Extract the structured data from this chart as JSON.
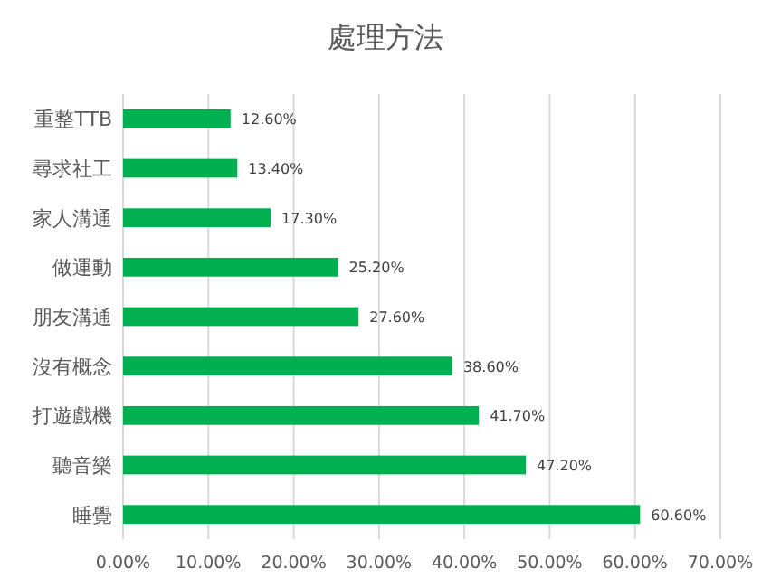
{
  "chart_data": {
    "type": "bar",
    "orientation": "horizontal",
    "title": "處理方法",
    "categories": [
      "重整TTB",
      "尋求社工",
      "家人溝通",
      "做運動",
      "朋友溝通",
      "沒有概念",
      "打遊戲機",
      "聽音樂",
      "睡覺"
    ],
    "values": [
      12.6,
      13.4,
      17.3,
      25.2,
      27.6,
      38.6,
      41.7,
      47.2,
      60.6
    ],
    "value_labels": [
      "12.60%",
      "13.40%",
      "17.30%",
      "25.20%",
      "27.60%",
      "38.60%",
      "41.70%",
      "47.20%",
      "60.60%"
    ],
    "color": "#00b050",
    "xlim": [
      0,
      70
    ],
    "xticks": [
      {
        "value": 0,
        "label": "0.00%"
      },
      {
        "value": 10,
        "label": "10.00%"
      },
      {
        "value": 20,
        "label": "20.00%"
      },
      {
        "value": 30,
        "label": "30.00%"
      },
      {
        "value": 40,
        "label": "40.00%"
      },
      {
        "value": 50,
        "label": "50.00%"
      },
      {
        "value": 60,
        "label": "60.00%"
      },
      {
        "value": 70,
        "label": "70.00%"
      }
    ],
    "grid": "x"
  }
}
